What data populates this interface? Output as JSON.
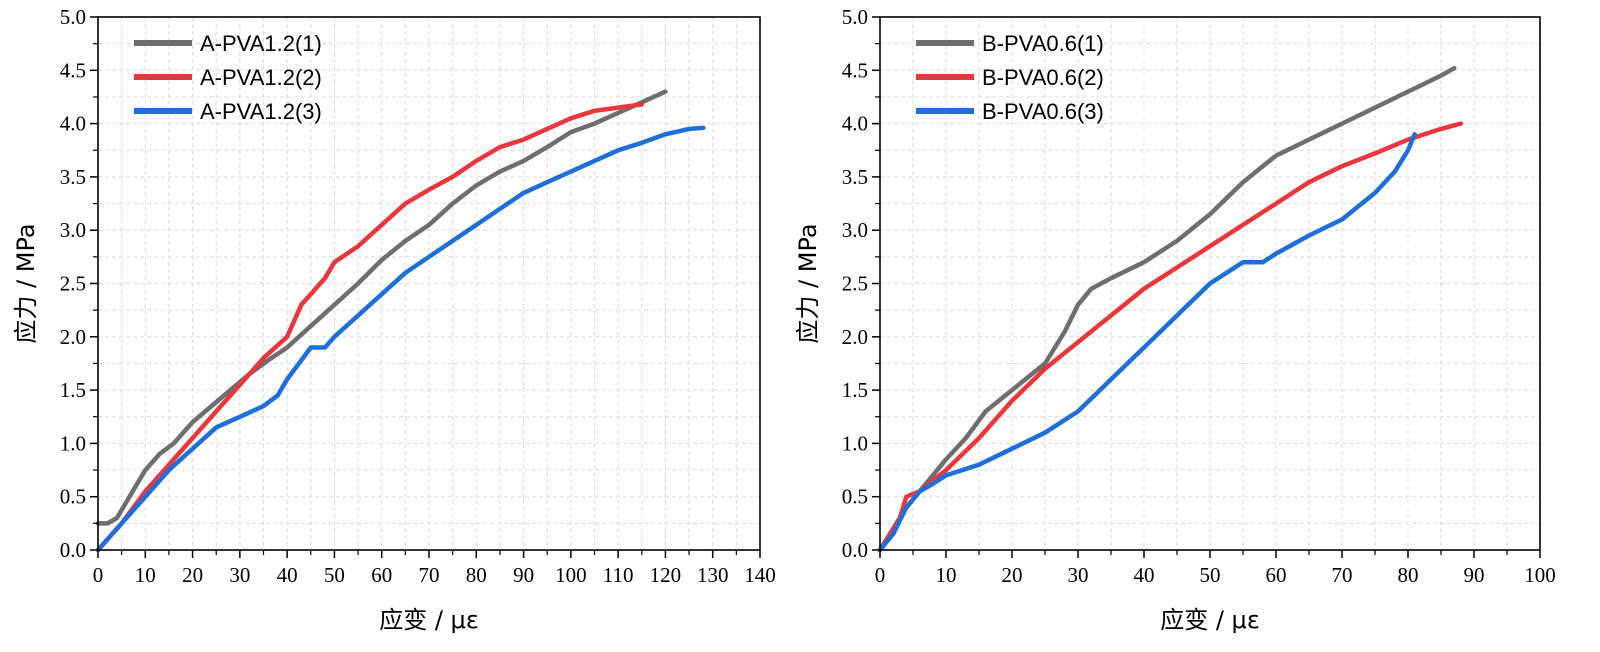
{
  "chart_data": [
    {
      "type": "line",
      "title": "",
      "xlabel": "应变 / με",
      "ylabel": "应力 / MPa",
      "xlim": [
        0,
        140
      ],
      "ylim": [
        0,
        5.0
      ],
      "xticks": [
        "0",
        "10",
        "20",
        "30",
        "40",
        "50",
        "60",
        "70",
        "80",
        "90",
        "100",
        "110",
        "120",
        "130",
        "140"
      ],
      "yticks": [
        "0.0",
        "0.5",
        "1.0",
        "1.5",
        "2.0",
        "2.5",
        "3.0",
        "3.5",
        "4.0",
        "4.5",
        "5.0"
      ],
      "grid": true,
      "legend_position": "top-left",
      "series": [
        {
          "name": "A-PVA1.2(1)",
          "color": "#6e6e6e",
          "x": [
            0,
            2,
            4,
            6,
            8,
            10,
            13,
            16,
            20,
            24,
            28,
            32,
            36,
            40,
            45,
            50,
            55,
            60,
            65,
            70,
            75,
            80,
            85,
            90,
            95,
            100,
            105,
            110,
            115,
            120
          ],
          "y": [
            0.25,
            0.25,
            0.3,
            0.45,
            0.6,
            0.75,
            0.9,
            1.0,
            1.2,
            1.35,
            1.5,
            1.65,
            1.78,
            1.9,
            2.1,
            2.3,
            2.5,
            2.72,
            2.9,
            3.05,
            3.25,
            3.42,
            3.55,
            3.65,
            3.78,
            3.92,
            4.0,
            4.1,
            4.2,
            4.3
          ]
        },
        {
          "name": "A-PVA1.2(2)",
          "color": "#e8383d",
          "x": [
            0,
            5,
            10,
            15,
            20,
            25,
            30,
            35,
            40,
            43,
            45,
            47,
            48,
            50,
            55,
            60,
            65,
            70,
            75,
            80,
            85,
            90,
            95,
            100,
            105,
            110,
            115
          ],
          "y": [
            0.0,
            0.25,
            0.55,
            0.8,
            1.05,
            1.3,
            1.55,
            1.8,
            2.0,
            2.3,
            2.4,
            2.5,
            2.55,
            2.7,
            2.85,
            3.05,
            3.25,
            3.38,
            3.5,
            3.65,
            3.78,
            3.85,
            3.95,
            4.05,
            4.12,
            4.15,
            4.18
          ]
        },
        {
          "name": "A-PVA1.2(3)",
          "color": "#1f6fd8",
          "x": [
            0,
            5,
            10,
            15,
            20,
            25,
            30,
            35,
            38,
            40,
            45,
            48,
            50,
            55,
            60,
            65,
            70,
            75,
            80,
            85,
            90,
            95,
            100,
            105,
            110,
            115,
            120,
            125,
            128
          ],
          "y": [
            0.0,
            0.25,
            0.5,
            0.75,
            0.95,
            1.15,
            1.25,
            1.35,
            1.45,
            1.6,
            1.9,
            1.9,
            2.0,
            2.2,
            2.4,
            2.6,
            2.75,
            2.9,
            3.05,
            3.2,
            3.35,
            3.45,
            3.55,
            3.65,
            3.75,
            3.82,
            3.9,
            3.95,
            3.96
          ]
        }
      ]
    },
    {
      "type": "line",
      "title": "",
      "xlabel": "应变 / με",
      "ylabel": "应力 / MPa",
      "xlim": [
        0,
        100
      ],
      "ylim": [
        0,
        5.0
      ],
      "xticks": [
        "0",
        "10",
        "20",
        "30",
        "40",
        "50",
        "60",
        "70",
        "80",
        "90",
        "100"
      ],
      "yticks": [
        "0.0",
        "0.5",
        "1.0",
        "1.5",
        "2.0",
        "2.5",
        "3.0",
        "3.5",
        "4.0",
        "4.5",
        "5.0"
      ],
      "grid": true,
      "legend_position": "top-left",
      "series": [
        {
          "name": "B-PVA0.6(1)",
          "color": "#6e6e6e",
          "x": [
            0,
            2,
            4,
            6,
            8,
            10,
            13,
            16,
            20,
            25,
            28,
            30,
            32,
            35,
            40,
            45,
            50,
            55,
            60,
            65,
            70,
            75,
            80,
            85,
            87
          ],
          "y": [
            0.0,
            0.2,
            0.4,
            0.55,
            0.7,
            0.85,
            1.05,
            1.3,
            1.5,
            1.75,
            2.05,
            2.3,
            2.45,
            2.55,
            2.7,
            2.9,
            3.15,
            3.45,
            3.7,
            3.85,
            4.0,
            4.15,
            4.3,
            4.45,
            4.52
          ]
        },
        {
          "name": "B-PVA0.6(2)",
          "color": "#e8383d",
          "x": [
            0,
            3,
            4,
            6,
            8,
            10,
            15,
            20,
            25,
            30,
            35,
            40,
            45,
            50,
            55,
            60,
            65,
            70,
            75,
            80,
            85,
            88
          ],
          "y": [
            0.0,
            0.3,
            0.5,
            0.55,
            0.65,
            0.75,
            1.05,
            1.4,
            1.7,
            1.95,
            2.2,
            2.45,
            2.65,
            2.85,
            3.05,
            3.25,
            3.45,
            3.6,
            3.72,
            3.85,
            3.95,
            4.0
          ]
        },
        {
          "name": "B-PVA0.6(3)",
          "color": "#1f6fd8",
          "x": [
            0,
            2,
            4,
            6,
            8,
            10,
            15,
            20,
            25,
            30,
            35,
            40,
            45,
            50,
            55,
            58,
            60,
            65,
            70,
            75,
            78,
            80,
            81
          ],
          "y": [
            0.0,
            0.15,
            0.4,
            0.55,
            0.62,
            0.7,
            0.8,
            0.95,
            1.1,
            1.3,
            1.6,
            1.9,
            2.2,
            2.5,
            2.7,
            2.7,
            2.78,
            2.95,
            3.1,
            3.35,
            3.55,
            3.75,
            3.9
          ]
        }
      ]
    }
  ]
}
